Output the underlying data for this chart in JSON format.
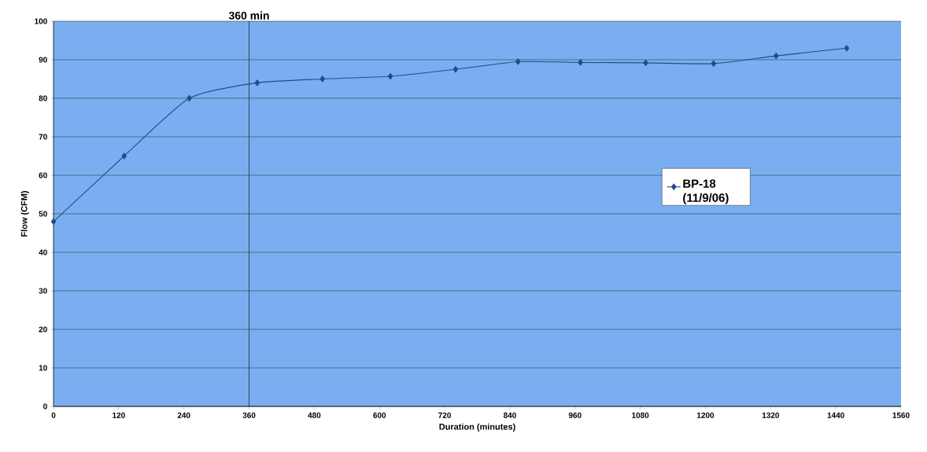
{
  "chart_data": {
    "type": "line",
    "xlabel": "Duration (minutes)",
    "ylabel": "Flow (CFM)",
    "x": [
      0,
      130,
      250,
      375,
      495,
      620,
      740,
      855,
      970,
      1090,
      1215,
      1330,
      1460
    ],
    "series": [
      {
        "name": "BP-18 (11/9/06)",
        "color": "#1f4e8c",
        "values": [
          48,
          65,
          80,
          84,
          85,
          85.7,
          87.5,
          89.5,
          89.3,
          89.2,
          89,
          91,
          93
        ]
      }
    ],
    "xlim": [
      0,
      1560
    ],
    "xticks": [
      0,
      120,
      240,
      360,
      480,
      600,
      720,
      840,
      960,
      1080,
      1200,
      1320,
      1440,
      1560
    ],
    "ylim": [
      0,
      100
    ],
    "yticks": [
      0,
      10,
      20,
      30,
      40,
      50,
      60,
      70,
      80,
      90,
      100
    ],
    "ref_lines": [
      {
        "axis": "x",
        "value": 360,
        "label": "360 min",
        "color": "#1e3c3c"
      }
    ],
    "grid": "y",
    "legend": "right",
    "marker": "diamond",
    "line_style": "solid"
  }
}
